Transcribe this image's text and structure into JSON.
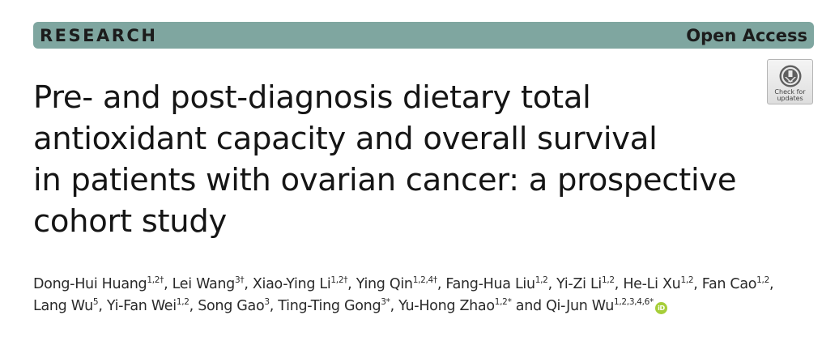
{
  "banner": {
    "left": "RESEARCH",
    "right": "Open Access",
    "color": "#7fa6a0"
  },
  "badge": {
    "line1": "Check for",
    "line2": "updates"
  },
  "title": {
    "lines": [
      "Pre- and post-diagnosis dietary total",
      "antioxidant capacity and overall survival",
      "in patients with ovarian cancer: a prospective",
      "cohort study"
    ]
  },
  "authors": [
    {
      "name": "Dong-Hui Huang",
      "aff": "1,2†",
      "sep": ", "
    },
    {
      "name": "Lei Wang",
      "aff": "3†",
      "sep": ", "
    },
    {
      "name": "Xiao-Ying Li",
      "aff": "1,2†",
      "sep": ", "
    },
    {
      "name": "Ying Qin",
      "aff": "1,2,4†",
      "sep": ", "
    },
    {
      "name": "Fang-Hua Liu",
      "aff": "1,2",
      "sep": ", "
    },
    {
      "name": "Yi-Zi Li",
      "aff": "1,2",
      "sep": ", "
    },
    {
      "name": "He-Li Xu",
      "aff": "1,2",
      "sep": ", "
    },
    {
      "name": "Fan Cao",
      "aff": "1,2",
      "sep": ","
    },
    {
      "name": "Lang Wu",
      "aff": "5",
      "sep": ", "
    },
    {
      "name": "Yi-Fan Wei",
      "aff": "1,2",
      "sep": ", "
    },
    {
      "name": "Song Gao",
      "aff": "3",
      "sep": ", "
    },
    {
      "name": "Ting-Ting Gong",
      "aff": "3*",
      "sep": ", "
    },
    {
      "name": "Yu-Hong Zhao",
      "aff": "1,2*",
      "sep": " and "
    },
    {
      "name": "Qi-Jun Wu",
      "aff": "1,2,3,4,6*",
      "sep": ""
    }
  ],
  "orcid_icon": "orcid-icon",
  "orcid_label": "iD"
}
